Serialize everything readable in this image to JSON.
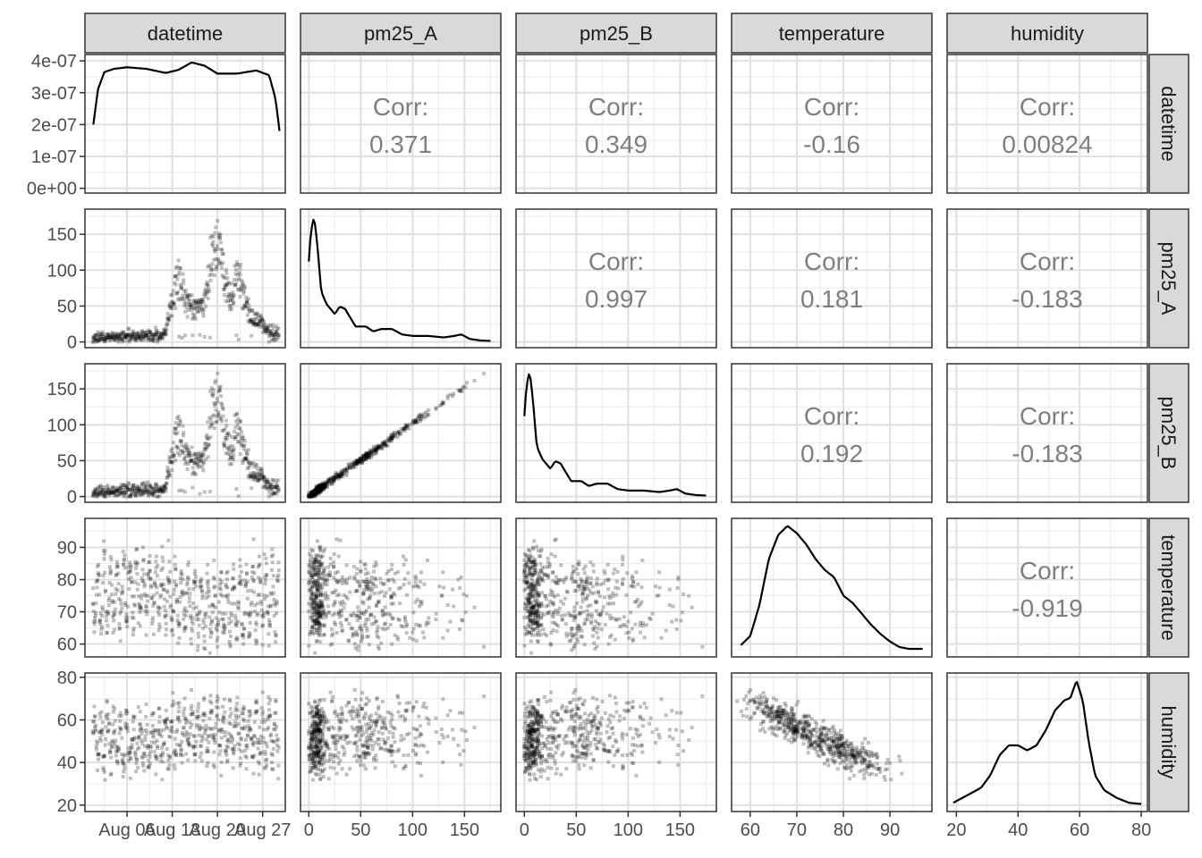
{
  "chart_data": {
    "type": "scatter",
    "title": "",
    "variables": [
      "datetime",
      "pm25_A",
      "pm25_B",
      "temperature",
      "humidity"
    ],
    "corr_label": "Corr:",
    "correlations": [
      {
        "row": "datetime",
        "col": "pm25_A",
        "value": "0.371"
      },
      {
        "row": "datetime",
        "col": "pm25_B",
        "value": "0.349"
      },
      {
        "row": "datetime",
        "col": "temperature",
        "value": "-0.16"
      },
      {
        "row": "datetime",
        "col": "humidity",
        "value": "0.00824"
      },
      {
        "row": "pm25_A",
        "col": "pm25_B",
        "value": "0.997"
      },
      {
        "row": "pm25_A",
        "col": "temperature",
        "value": "0.181"
      },
      {
        "row": "pm25_A",
        "col": "humidity",
        "value": "-0.183"
      },
      {
        "row": "pm25_B",
        "col": "temperature",
        "value": "0.192"
      },
      {
        "row": "pm25_B",
        "col": "humidity",
        "value": "-0.183"
      },
      {
        "row": "temperature",
        "col": "humidity",
        "value": "-0.919"
      }
    ],
    "axes": {
      "datetime": {
        "range": [
          -1.5,
          29.5
        ],
        "ticks": [
          {
            "v": 5,
            "label": "Aug 06"
          },
          {
            "v": 12,
            "label": "Aug 13"
          },
          {
            "v": 19,
            "label": "Aug 20"
          },
          {
            "v": 26,
            "label": "Aug 27"
          }
        ]
      },
      "datetime_density": {
        "range": [
          -1.5e-08,
          4.2e-07
        ],
        "ticks": [
          {
            "v": 0,
            "label": "0e+00"
          },
          {
            "v": 1e-07,
            "label": "1e-07"
          },
          {
            "v": 2e-07,
            "label": "2e-07"
          },
          {
            "v": 3e-07,
            "label": "3e-07"
          },
          {
            "v": 4e-07,
            "label": "4e-07"
          }
        ]
      },
      "pm25_A": {
        "range": [
          -8,
          185
        ],
        "ticks": [
          {
            "v": 0,
            "label": "0"
          },
          {
            "v": 50,
            "label": "50"
          },
          {
            "v": 100,
            "label": "100"
          },
          {
            "v": 150,
            "label": "150"
          }
        ]
      },
      "pm25_B": {
        "range": [
          -8,
          185
        ],
        "ticks": [
          {
            "v": 0,
            "label": "0"
          },
          {
            "v": 50,
            "label": "50"
          },
          {
            "v": 100,
            "label": "100"
          },
          {
            "v": 150,
            "label": "150"
          }
        ]
      },
      "temperature": {
        "range": [
          56,
          99
        ],
        "ticks": [
          {
            "v": 60,
            "label": "60"
          },
          {
            "v": 70,
            "label": "70"
          },
          {
            "v": 80,
            "label": "80"
          },
          {
            "v": 90,
            "label": "90"
          }
        ]
      },
      "humidity": {
        "range": [
          17,
          82
        ],
        "ticks": [
          {
            "v": 20,
            "label": "20"
          },
          {
            "v": 40,
            "label": "40"
          },
          {
            "v": 60,
            "label": "60"
          },
          {
            "v": 80,
            "label": "80"
          }
        ]
      }
    },
    "densities": {
      "datetime": {
        "x": [
          -0.2,
          0.5,
          1.5,
          3,
          5,
          8,
          11,
          13,
          15,
          17,
          19,
          22,
          25,
          27,
          28,
          28.6
        ],
        "y": [
          2e-07,
          3.1e-07,
          3.65e-07,
          3.75e-07,
          3.8e-07,
          3.75e-07,
          3.62e-07,
          3.72e-07,
          3.95e-07,
          3.85e-07,
          3.6e-07,
          3.6e-07,
          3.7e-07,
          3.55e-07,
          2.8e-07,
          1.8e-07
        ]
      },
      "pm25_A": {
        "x": [
          0,
          2,
          5,
          8,
          12,
          17,
          25,
          30,
          35,
          45,
          55,
          62,
          70,
          80,
          90,
          100,
          115,
          130,
          140,
          147,
          155,
          165,
          175
        ],
        "y": [
          0.016,
          0.022,
          0.025,
          0.02,
          0.01,
          0.0075,
          0.0055,
          0.007,
          0.0065,
          0.003,
          0.003,
          0.002,
          0.0025,
          0.0025,
          0.0014,
          0.0011,
          0.0011,
          0.0008,
          0.0011,
          0.0014,
          0.0005,
          0.0002,
          0.0001
        ]
      },
      "pm25_B": {
        "x": [
          0,
          2,
          5,
          8,
          12,
          17,
          25,
          30,
          35,
          45,
          55,
          62,
          70,
          80,
          90,
          100,
          115,
          130,
          140,
          147,
          155,
          165,
          175
        ],
        "y": [
          0.016,
          0.022,
          0.025,
          0.02,
          0.01,
          0.0075,
          0.0055,
          0.007,
          0.0065,
          0.003,
          0.003,
          0.002,
          0.0025,
          0.0025,
          0.0014,
          0.0011,
          0.0011,
          0.0008,
          0.0011,
          0.0014,
          0.0005,
          0.0002,
          0.0001
        ]
      },
      "temperature": {
        "x": [
          58,
          60,
          62,
          64,
          66,
          68,
          70,
          72,
          74,
          76,
          78,
          80,
          82,
          84,
          86,
          88,
          90,
          92,
          94,
          97
        ],
        "y": [
          0.003,
          0.008,
          0.025,
          0.05,
          0.063,
          0.068,
          0.064,
          0.058,
          0.05,
          0.044,
          0.04,
          0.03,
          0.026,
          0.02,
          0.014,
          0.009,
          0.005,
          0.002,
          0.001,
          0.001
        ]
      },
      "humidity": {
        "x": [
          19,
          22,
          25,
          28,
          31,
          34,
          37,
          40,
          43,
          46,
          49,
          52,
          55,
          57,
          59,
          61,
          63,
          65,
          68,
          72,
          76,
          80
        ],
        "y": [
          0.001,
          0.003,
          0.005,
          0.007,
          0.012,
          0.02,
          0.024,
          0.024,
          0.022,
          0.024,
          0.03,
          0.038,
          0.042,
          0.043,
          0.05,
          0.042,
          0.025,
          0.012,
          0.006,
          0.003,
          0.001,
          0.0005
        ]
      }
    },
    "scatter_alpha": 0.25,
    "point_color": "#000000"
  }
}
